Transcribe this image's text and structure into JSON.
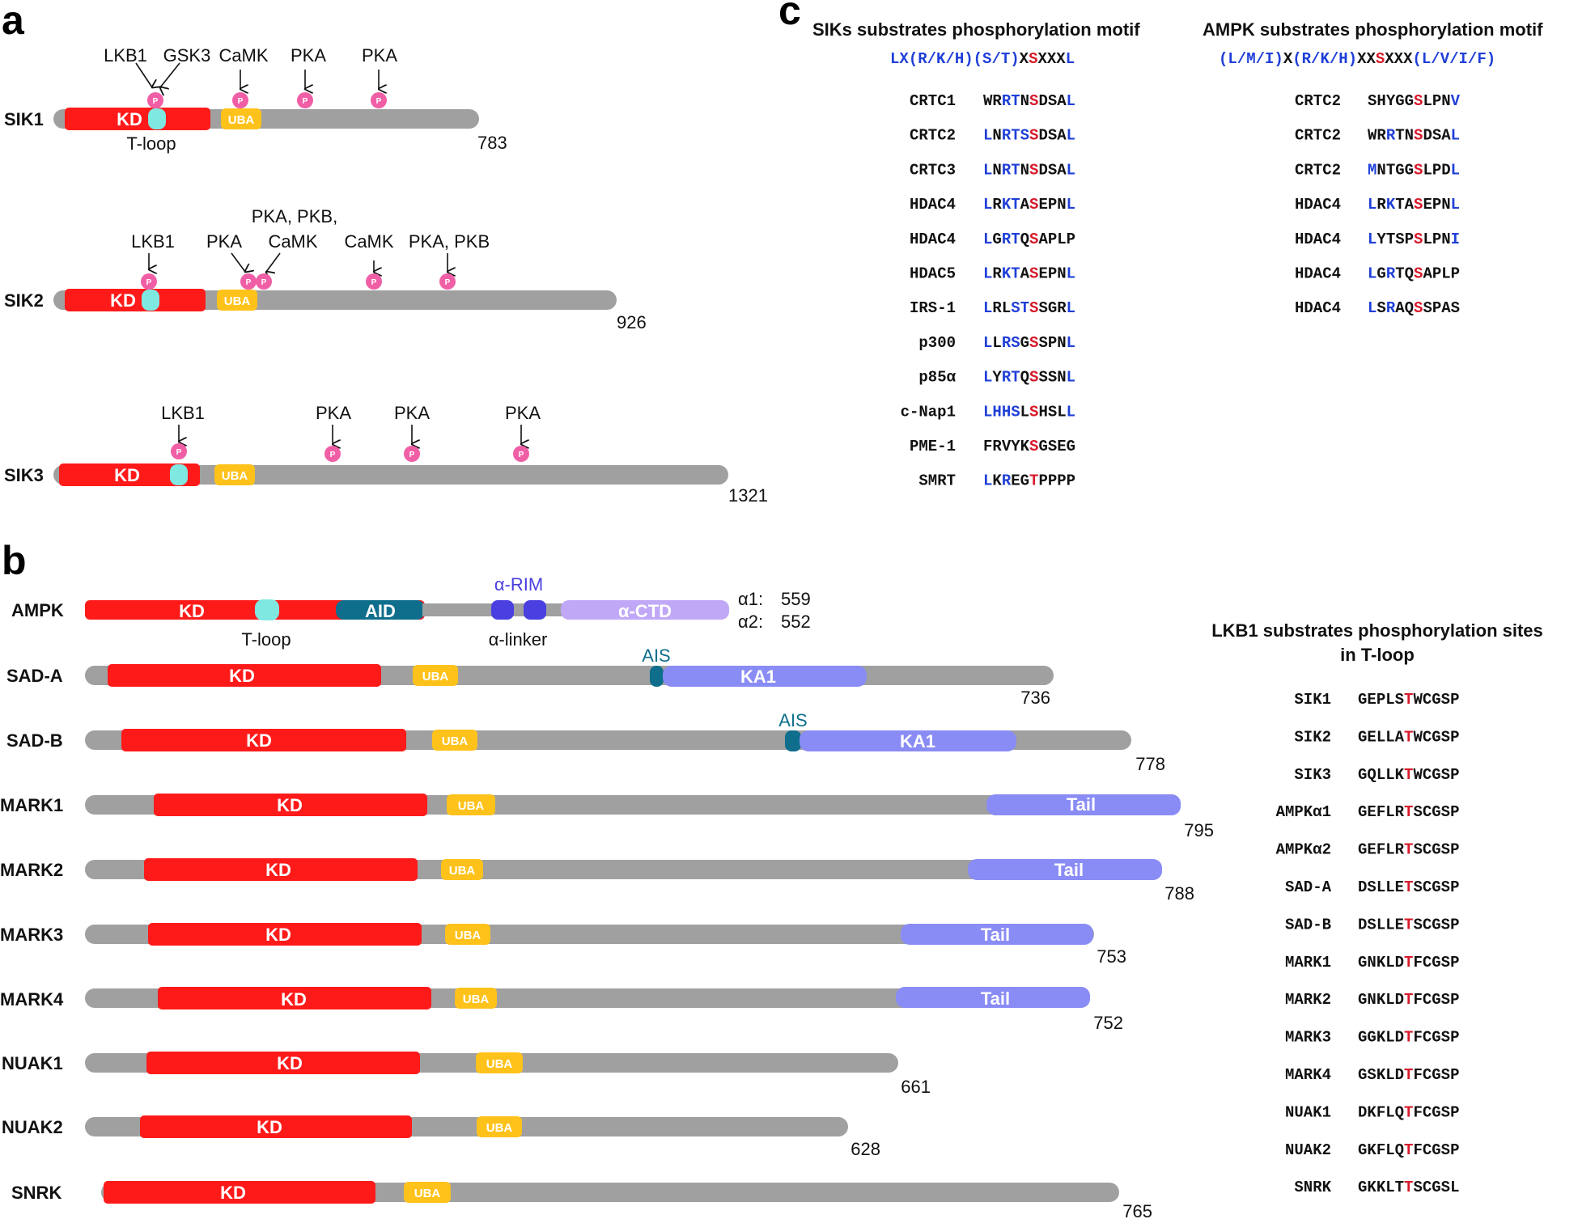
{
  "panels": {
    "a": "a",
    "b": "b",
    "c": "c"
  },
  "colors": {
    "backbone": "#a0a0a0",
    "kd": "#ff1a1a",
    "uba": "#ffc21a",
    "tloop": "#7fe8e0",
    "phospho": "#f05fa6",
    "aid": "#0e6e8c",
    "alpha_rim": "#4a3fe0",
    "alpha_ctd": "#c0a8f7",
    "ka1": "#8a8cf5",
    "tail": "#8a8cf5",
    "blue_residue": "#1f3fd8",
    "red_residue": "#d7192a",
    "black_residue": "#111111"
  },
  "panel_a": {
    "phospho_symbol": "P",
    "sik1": {
      "name": "SIK1",
      "length": "783",
      "kd": "KD",
      "uba": "UBA",
      "tloop_label": "T-loop",
      "kinases": [
        "LKB1",
        "GSK3",
        "CaMK",
        "PKA",
        "PKA"
      ]
    },
    "sik2": {
      "name": "SIK2",
      "length": "926",
      "kd": "KD",
      "uba": "UBA",
      "kinases": [
        "LKB1",
        "PKA",
        "PKA, PKB,",
        "CaMK",
        "CaMK",
        "PKA, PKB"
      ]
    },
    "sik3": {
      "name": "SIK3",
      "length": "1321",
      "kd": "KD",
      "uba": "UBA",
      "kinases": [
        "LKB1",
        "PKA",
        "PKA",
        "PKA"
      ]
    }
  },
  "panel_b": {
    "ampk": {
      "name": "AMPK",
      "kd": "KD",
      "aid": "AID",
      "alpha_rim": "α-RIM",
      "alpha_ctd": "α-CTD",
      "tloop_label": "T-loop",
      "linker_label": "α-linker",
      "len1_label": "α1:",
      "len1": "559",
      "len2_label": "α2:",
      "len2": "552"
    },
    "proteins": [
      {
        "name": "SAD-A",
        "length": "736",
        "kd": "KD",
        "uba": "UBA",
        "ais": "AIS",
        "ext": "KA1"
      },
      {
        "name": "SAD-B",
        "length": "778",
        "kd": "KD",
        "uba": "UBA",
        "ais": "AIS",
        "ext": "KA1"
      },
      {
        "name": "MARK1",
        "length": "795",
        "kd": "KD",
        "uba": "UBA",
        "ext": "Tail"
      },
      {
        "name": "MARK2",
        "length": "788",
        "kd": "KD",
        "uba": "UBA",
        "ext": "Tail"
      },
      {
        "name": "MARK3",
        "length": "753",
        "kd": "KD",
        "uba": "UBA",
        "ext": "Tail"
      },
      {
        "name": "MARK4",
        "length": "752",
        "kd": "KD",
        "uba": "UBA",
        "ext": "Tail"
      },
      {
        "name": "NUAK1",
        "length": "661",
        "kd": "KD",
        "uba": "UBA"
      },
      {
        "name": "NUAK2",
        "length": "628",
        "kd": "KD",
        "uba": "UBA"
      },
      {
        "name": "SNRK",
        "length": "765",
        "kd": "KD",
        "uba": "UBA"
      }
    ]
  },
  "panel_c": {
    "sik_title": "SIKs substrates phosphorylation motif",
    "sik_motif": [
      {
        "t": "LX",
        "c": "blue"
      },
      {
        "t": "(R/K/H)",
        "c": "blue"
      },
      {
        "t": "(S/T)",
        "c": "blue"
      },
      {
        "t": "X",
        "c": "black"
      },
      {
        "t": "S",
        "c": "red"
      },
      {
        "t": "XXX",
        "c": "black"
      },
      {
        "t": "L",
        "c": "blue"
      }
    ],
    "ampk_title": "AMPK substrates phosphorylation motif",
    "ampk_motif": [
      {
        "t": "(L/M/I)",
        "c": "blue"
      },
      {
        "t": "X",
        "c": "black"
      },
      {
        "t": "(R/K/H)",
        "c": "blue"
      },
      {
        "t": "XX",
        "c": "black"
      },
      {
        "t": "S",
        "c": "red"
      },
      {
        "t": "XXX",
        "c": "black"
      },
      {
        "t": "(L/V/I/F)",
        "c": "blue"
      }
    ],
    "sik_substrates": [
      {
        "name": "CRTC1",
        "seq": "WRRTNSDSAL",
        "colors": "kkbbkrkkkb"
      },
      {
        "name": "CRTC2",
        "seq": "LNRTSSDSAL",
        "colors": "bkbbbrkkkb"
      },
      {
        "name": "CRTC3",
        "seq": "LNRTNSDSAL",
        "colors": "bkbbkrkkkb"
      },
      {
        "name": "HDAC4",
        "seq": "LRKTASEPNL",
        "colors": "bkbbkrkkkb"
      },
      {
        "name": "HDAC4",
        "seq": "LGRTQSAPLP",
        "colors": "bkbbkrkkkk"
      },
      {
        "name": "HDAC5",
        "seq": "LRKTASEPNL",
        "colors": "bkbbkrkkkb"
      },
      {
        "name": "IRS-1",
        "seq": "LRLSTSSGRL",
        "colors": "bkkbbrkkkb"
      },
      {
        "name": "p300",
        "seq": "LLRSGSSPNL",
        "colors": "bkbbkrkkkb"
      },
      {
        "name": "p85α",
        "seq": "LYRTQSSSNL",
        "colors": "bkbbkrkkkb"
      },
      {
        "name": "c-Nap1",
        "seq": "LHHSLSHSLL",
        "colors": "bbbbkrkkkb"
      },
      {
        "name": "PME-1",
        "seq": "FRVYKSGSEG",
        "colors": "kkkkkrkkkk"
      },
      {
        "name": "SMRT",
        "seq": "LKREGTPPPP",
        "colors": "bkbkkrkkkk"
      }
    ],
    "ampk_substrates": [
      {
        "name": "CRTC2",
        "seq": "SHYGGSLPNV",
        "colors": "kkkkkrkkkb"
      },
      {
        "name": "CRTC2",
        "seq": "WRRTNSDSAL",
        "colors": "kkbkkrkkkb"
      },
      {
        "name": "CRTC2",
        "seq": "MNTGGSLPDL",
        "colors": "bkkkkrkkkb"
      },
      {
        "name": "HDAC4",
        "seq": "LRKTASEPNL",
        "colors": "bkbkkrkkkb"
      },
      {
        "name": "HDAC4",
        "seq": "LYTSPSLPNI",
        "colors": "bkkkkrkkkb"
      },
      {
        "name": "HDAC4",
        "seq": "LGRTQSAPLP",
        "colors": "bkbkkrkkkk"
      },
      {
        "name": "HDAC4",
        "seq": "LSRAQSSPAS",
        "colors": "bkbkkrkkkk"
      }
    ],
    "lkb1_title_1": "LKB1 substrates phosphorylation sites",
    "lkb1_title_2": "in T-loop",
    "lkb1_substrates": [
      {
        "name": "SIK1",
        "seq": "GEPLSTWCGSP",
        "red": 5
      },
      {
        "name": "SIK2",
        "seq": "GELLATWCGSP",
        "red": 5
      },
      {
        "name": "SIK3",
        "seq": "GQLLKTWCGSP",
        "red": 5
      },
      {
        "name": "AMPKα1",
        "seq": "GEFLRTSCGSP",
        "red": 5
      },
      {
        "name": "AMPKα2",
        "seq": "GEFLRTSCGSP",
        "red": 5
      },
      {
        "name": "SAD-A",
        "seq": "DSLLETSCGSP",
        "red": 5
      },
      {
        "name": "SAD-B",
        "seq": "DSLLETSCGSP",
        "red": 5
      },
      {
        "name": "MARK1",
        "seq": "GNKLDTFCGSP",
        "red": 5
      },
      {
        "name": "MARK2",
        "seq": "GNKLDTFCGSP",
        "red": 5
      },
      {
        "name": "MARK3",
        "seq": "GGKLDTFCGSP",
        "red": 5
      },
      {
        "name": "MARK4",
        "seq": "GSKLDTFCGSP",
        "red": 5
      },
      {
        "name": "NUAK1",
        "seq": "DKFLQTFCGSP",
        "red": 5
      },
      {
        "name": "NUAK2",
        "seq": "GKFLQTFCGSP",
        "red": 5
      },
      {
        "name": "SNRK",
        "seq": "GKKLTTSCGSL",
        "red": 5
      }
    ]
  }
}
